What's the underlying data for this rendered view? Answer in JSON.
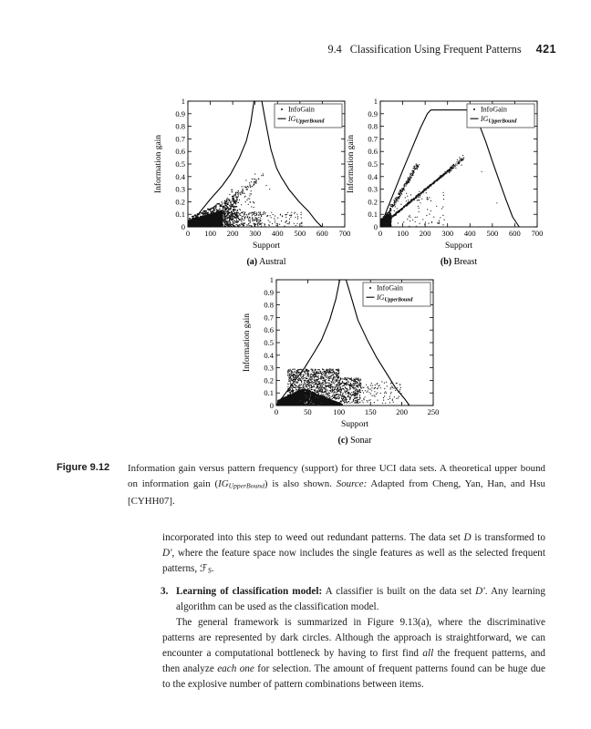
{
  "page": {
    "header": {
      "section": "9.4",
      "title": "Classification Using Frequent Patterns",
      "page_number": "421"
    }
  },
  "figure": {
    "label": "Figure 9.12",
    "caption_runs": [
      {
        "t": "Information gain versus pattern frequency (support) for three UCI data sets. A theoretical upper bound on information gain (",
        "s": ""
      },
      {
        "t": "IG",
        "s": "i"
      },
      {
        "t": "UpperBound",
        "s": "sub i"
      },
      {
        "t": ") is also shown. ",
        "s": ""
      },
      {
        "t": "Source:",
        "s": "i"
      },
      {
        "t": " Adapted from Cheng, Yan, Han, and Hsu [CYHH07].",
        "s": ""
      }
    ]
  },
  "chart_data": [
    {
      "type": "scatter",
      "name": "austral",
      "subcaption_runs": [
        {
          "t": "(a)",
          "s": "b"
        },
        {
          "t": " Austral",
          "s": ""
        }
      ],
      "xlabel": "Support",
      "ylabel": "Information gain",
      "xlim": [
        0,
        700
      ],
      "xticks": [
        0,
        100,
        200,
        300,
        400,
        500,
        600,
        700
      ],
      "ylim": [
        0,
        1
      ],
      "yticks": [
        0,
        0.1,
        0.2,
        0.3,
        0.4,
        0.5,
        0.6,
        0.7,
        0.8,
        0.9,
        1
      ],
      "grid": false,
      "legend_position": "top-right",
      "legend": [
        {
          "marker": "dot",
          "runs": [
            {
              "t": "InfoGain",
              "s": ""
            }
          ]
        },
        {
          "marker": "line",
          "runs": [
            {
              "t": "IG",
              "s": "i"
            },
            {
              "t": "UpperBound",
              "s": "sub i"
            }
          ]
        }
      ],
      "upper_bound_curve": [
        [
          0,
          0
        ],
        [
          50,
          0.11
        ],
        [
          100,
          0.22
        ],
        [
          150,
          0.32
        ],
        [
          191,
          0.42
        ],
        [
          230,
          0.55
        ],
        [
          260,
          0.68
        ],
        [
          280,
          0.82
        ],
        [
          295,
          1
        ],
        [
          330,
          1
        ],
        [
          345,
          0.85
        ],
        [
          370,
          0.62
        ],
        [
          395,
          0.47
        ],
        [
          415,
          0.4
        ],
        [
          450,
          0.3
        ],
        [
          496,
          0.2
        ],
        [
          540,
          0.12
        ],
        [
          570,
          0.05
        ],
        [
          598,
          0
        ]
      ],
      "scatter_clusters": [
        {
          "shape": "wedge",
          "x": [
            2,
            155
          ],
          "ytop": [
            0.05,
            0.135
          ],
          "count": 2600
        },
        {
          "shape": "wedge",
          "x": [
            5,
            225
          ],
          "ytop": [
            0.07,
            0.27
          ],
          "count": 550
        },
        {
          "shape": "cloud",
          "x": [
            150,
            330
          ],
          "y": [
            0.005,
            0.12
          ],
          "count": 260
        },
        {
          "shape": "cloud",
          "x": [
            330,
            510
          ],
          "y": [
            0.005,
            0.125
          ],
          "count": 70
        },
        {
          "shape": "line",
          "from": [
            160,
            0.16
          ],
          "to": [
            330,
            0.41
          ],
          "jx": 25,
          "jy": 0.035,
          "count": 90
        },
        {
          "shape": "cloud",
          "x": [
            180,
            300
          ],
          "y": [
            0.12,
            0.3
          ],
          "count": 50
        },
        {
          "shape": "points",
          "pts": [
            [
              300,
              0.42
            ],
            [
              335,
              0.42
            ],
            [
              350,
              0.33
            ],
            [
              365,
              0.3
            ],
            [
              260,
              0.37
            ]
          ]
        }
      ]
    },
    {
      "type": "scatter",
      "name": "breast",
      "subcaption_runs": [
        {
          "t": "(b)",
          "s": "b"
        },
        {
          "t": " Breast",
          "s": ""
        }
      ],
      "xlabel": "Support",
      "ylabel": "Information gain",
      "xlim": [
        0,
        700
      ],
      "xticks": [
        0,
        100,
        200,
        300,
        400,
        500,
        600,
        700
      ],
      "ylim": [
        0,
        1
      ],
      "yticks": [
        0,
        0.1,
        0.2,
        0.3,
        0.4,
        0.5,
        0.6,
        0.7,
        0.8,
        0.9,
        1
      ],
      "grid": false,
      "legend_position": "top-right",
      "legend": [
        {
          "marker": "dot",
          "runs": [
            {
              "t": "InfoGain",
              "s": ""
            }
          ]
        },
        {
          "marker": "line",
          "runs": [
            {
              "t": "IG",
              "s": "i"
            },
            {
              "t": "UpperBound",
              "s": "sub i"
            }
          ]
        }
      ],
      "upper_bound_curve": [
        [
          0,
          0
        ],
        [
          30,
          0.14
        ],
        [
          60,
          0.27
        ],
        [
          100,
          0.45
        ],
        [
          140,
          0.62
        ],
        [
          180,
          0.79
        ],
        [
          210,
          0.9
        ],
        [
          225,
          0.93
        ],
        [
          412,
          0.93
        ],
        [
          440,
          0.82
        ],
        [
          470,
          0.68
        ],
        [
          500,
          0.52
        ],
        [
          530,
          0.37
        ],
        [
          560,
          0.22
        ],
        [
          590,
          0.08
        ],
        [
          620,
          0
        ]
      ],
      "scatter_clusters": [
        {
          "shape": "wedge",
          "x": [
            2,
            48
          ],
          "ytop": [
            0.06,
            0.11
          ],
          "count": 700
        },
        {
          "shape": "line",
          "from": [
            5,
            0.02
          ],
          "to": [
            168,
            0.5
          ],
          "jx": 10,
          "jy": 0.02,
          "count": 280
        },
        {
          "shape": "line",
          "from": [
            45,
            0.07
          ],
          "to": [
            320,
            0.47
          ],
          "jx": 6,
          "jy": 0.008,
          "count": 450
        },
        {
          "shape": "line",
          "from": [
            295,
            0.43
          ],
          "to": [
            372,
            0.55
          ],
          "jx": 15,
          "jy": 0.025,
          "count": 70
        },
        {
          "shape": "cloud",
          "x": [
            50,
            290
          ],
          "y": [
            0.01,
            0.28
          ],
          "count": 70
        },
        {
          "shape": "points",
          "pts": [
            [
              520,
              0.19
            ],
            [
              452,
              0.44
            ],
            [
              262,
              0.05
            ],
            [
              198,
              0.02
            ],
            [
              160,
              0.005
            ],
            [
              130,
              0.001
            ]
          ]
        }
      ]
    },
    {
      "type": "scatter",
      "name": "sonar",
      "subcaption_runs": [
        {
          "t": "(c)",
          "s": "b"
        },
        {
          "t": " Sonar",
          "s": ""
        }
      ],
      "xlabel": "Support",
      "ylabel": "Information gain",
      "xlim": [
        0,
        250
      ],
      "xticks": [
        0,
        50,
        100,
        150,
        200,
        250
      ],
      "ylim": [
        0,
        1
      ],
      "yticks": [
        0,
        0.1,
        0.2,
        0.3,
        0.4,
        0.5,
        0.6,
        0.7,
        0.8,
        0.9,
        1
      ],
      "grid": false,
      "legend_position": "top-right",
      "legend": [
        {
          "marker": "dot",
          "runs": [
            {
              "t": "InfoGain",
              "s": ""
            }
          ]
        },
        {
          "marker": "line",
          "runs": [
            {
              "t": "IG",
              "s": "i"
            },
            {
              "t": "UpperBound",
              "s": "sub i"
            }
          ]
        }
      ],
      "upper_bound_curve": [
        [
          0,
          0
        ],
        [
          15,
          0.1
        ],
        [
          30,
          0.2
        ],
        [
          45,
          0.3
        ],
        [
          60,
          0.42
        ],
        [
          72,
          0.52
        ],
        [
          85,
          0.68
        ],
        [
          95,
          0.85
        ],
        [
          101,
          1
        ],
        [
          111,
          1
        ],
        [
          120,
          0.85
        ],
        [
          130,
          0.68
        ],
        [
          145,
          0.52
        ],
        [
          160,
          0.38
        ],
        [
          175,
          0.26
        ],
        [
          190,
          0.14
        ],
        [
          205,
          0.05
        ],
        [
          212,
          0
        ]
      ],
      "scatter_clusters": [
        {
          "shape": "wedge",
          "x": [
            2,
            44
          ],
          "ytop": [
            0.04,
            0.135
          ],
          "count": 1500
        },
        {
          "shape": "wedge",
          "x": [
            44,
            105
          ],
          "ytop": [
            0.135,
            0.01
          ],
          "count": 1300
        },
        {
          "shape": "cloud",
          "x": [
            18,
            100
          ],
          "y": [
            0.05,
            0.29
          ],
          "count": 1100
        },
        {
          "shape": "cloud",
          "x": [
            100,
            135
          ],
          "y": [
            0.02,
            0.22
          ],
          "count": 380
        },
        {
          "shape": "cloud",
          "x": [
            135,
            200
          ],
          "y": [
            0.01,
            0.19
          ],
          "count": 90
        },
        {
          "shape": "points",
          "pts": [
            [
              150,
              0.13
            ],
            [
              160,
              0.17
            ],
            [
              175,
              0.1
            ],
            [
              185,
              0.05
            ],
            [
              190,
              0.12
            ]
          ]
        }
      ]
    }
  ],
  "body": {
    "para1_runs": [
      {
        "t": "incorporated into this step to weed out redundant patterns. The data set ",
        "s": ""
      },
      {
        "t": "D",
        "s": "i"
      },
      {
        "t": " is transformed to ",
        "s": ""
      },
      {
        "t": "D′",
        "s": "i"
      },
      {
        "t": ", where the feature space now includes the single features as well as the selected frequent patterns, ",
        "s": ""
      },
      {
        "t": "ℱ",
        "s": ""
      },
      {
        "t": "S",
        "s": "sub i"
      },
      {
        "t": ".",
        "s": ""
      }
    ],
    "item3": {
      "marker": "3.",
      "runs": [
        {
          "t": "Learning of classification model:",
          "s": "b"
        },
        {
          "t": " A classifier is built on the data set ",
          "s": ""
        },
        {
          "t": "D′",
          "s": "i"
        },
        {
          "t": ". Any learning algorithm can be used as the classification model.",
          "s": ""
        }
      ]
    },
    "para2_runs": [
      {
        "t": "The general framework is summarized in Figure 9.13(a), where the discriminative patterns are represented by dark circles. Although the approach is straightforward, we can encounter a computational bottleneck by having to first find ",
        "s": ""
      },
      {
        "t": "all",
        "s": "i"
      },
      {
        "t": " the frequent patterns, and then analyze ",
        "s": ""
      },
      {
        "t": "each one",
        "s": "i"
      },
      {
        "t": " for selection. The amount of frequent patterns found can be huge due to the explosive number of pattern combinations between items.",
        "s": ""
      }
    ]
  }
}
